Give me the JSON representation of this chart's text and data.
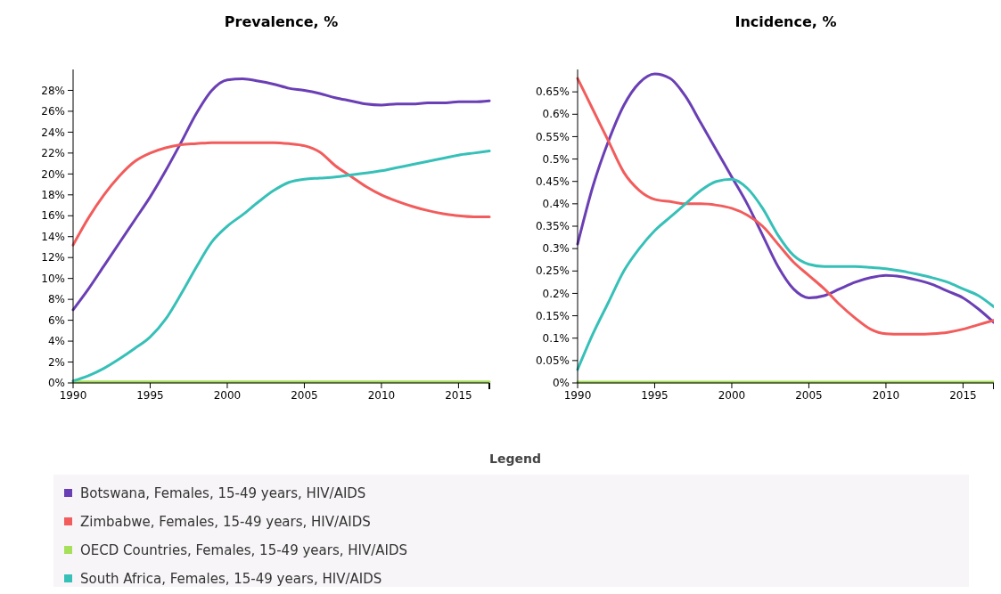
{
  "chart_data": [
    {
      "type": "line",
      "title": "Prevalence, %",
      "x": [
        1990,
        1991,
        1992,
        1993,
        1994,
        1995,
        1996,
        1997,
        1998,
        1999,
        2000,
        2001,
        2002,
        2003,
        2004,
        2005,
        2006,
        2007,
        2008,
        2009,
        2010,
        2011,
        2012,
        2013,
        2014,
        2015,
        2016,
        2017
      ],
      "xlim": [
        1990,
        2017
      ],
      "xticks": [
        1990,
        1995,
        2000,
        2005,
        2010,
        2015
      ],
      "ylim": [
        0,
        30
      ],
      "yticks": [
        {
          "value": 0,
          "label": "0%"
        },
        {
          "value": 2,
          "label": "2%"
        },
        {
          "value": 4,
          "label": "4%"
        },
        {
          "value": 6,
          "label": "6%"
        },
        {
          "value": 8,
          "label": "8%"
        },
        {
          "value": 10,
          "label": "10%"
        },
        {
          "value": 12,
          "label": "12%"
        },
        {
          "value": 14,
          "label": "14%"
        },
        {
          "value": 16,
          "label": "16%"
        },
        {
          "value": 18,
          "label": "18%"
        },
        {
          "value": 20,
          "label": "20%"
        },
        {
          "value": 22,
          "label": "22%"
        },
        {
          "value": 24,
          "label": "24%"
        },
        {
          "value": 26,
          "label": "26%"
        },
        {
          "value": 28,
          "label": "28%"
        }
      ],
      "grid": false,
      "legend": "bottom",
      "legend_title": "Legend",
      "marker": "none",
      "series": [
        {
          "name": "Botswana, Females, 15-49 years, HIV/AIDS",
          "color": "#6a3fb5",
          "values": [
            7,
            9,
            11.2,
            13.4,
            15.6,
            17.8,
            20.3,
            23,
            25.8,
            28,
            29,
            29.1,
            28.9,
            28.6,
            28.2,
            28,
            27.7,
            27.3,
            27,
            26.7,
            26.6,
            26.7,
            26.7,
            26.8,
            26.8,
            26.9,
            26.9,
            27
          ]
        },
        {
          "name": "Zimbabwe, Females, 15-49 years, HIV/AIDS",
          "color": "#f25c5c",
          "values": [
            13.2,
            15.8,
            18,
            19.8,
            21.2,
            22,
            22.5,
            22.8,
            22.9,
            23,
            23,
            23,
            23,
            23,
            22.9,
            22.7,
            22.1,
            20.8,
            19.8,
            18.8,
            18,
            17.4,
            16.9,
            16.5,
            16.2,
            16,
            15.9,
            15.9
          ]
        },
        {
          "name": "OECD Countries, Females, 15-49 years, HIV/AIDS",
          "color": "#a6e05a",
          "values": [
            0.1,
            0.1,
            0.1,
            0.1,
            0.1,
            0.1,
            0.1,
            0.1,
            0.1,
            0.1,
            0.1,
            0.1,
            0.1,
            0.1,
            0.1,
            0.1,
            0.1,
            0.1,
            0.1,
            0.1,
            0.1,
            0.1,
            0.1,
            0.1,
            0.1,
            0.1,
            0.1,
            0.1
          ]
        },
        {
          "name": "South Africa, Females, 15-49 years, HIV/AIDS",
          "color": "#36c0b8",
          "values": [
            0.2,
            0.7,
            1.4,
            2.3,
            3.3,
            4.4,
            6.1,
            8.5,
            11.1,
            13.5,
            15,
            16.1,
            17.3,
            18.4,
            19.2,
            19.5,
            19.6,
            19.7,
            19.9,
            20.1,
            20.3,
            20.6,
            20.9,
            21.2,
            21.5,
            21.8,
            22,
            22.2
          ]
        }
      ]
    },
    {
      "type": "line",
      "title": "Incidence, %",
      "x": [
        1990,
        1991,
        1992,
        1993,
        1994,
        1995,
        1996,
        1997,
        1998,
        1999,
        2000,
        2001,
        2002,
        2003,
        2004,
        2005,
        2006,
        2007,
        2008,
        2009,
        2010,
        2011,
        2012,
        2013,
        2014,
        2015,
        2016,
        2017
      ],
      "xlim": [
        1990,
        2017
      ],
      "xticks": [
        1990,
        1995,
        2000,
        2005,
        2010,
        2015
      ],
      "ylim": [
        0,
        0.7
      ],
      "yticks": [
        {
          "value": 0,
          "label": "0%"
        },
        {
          "value": 0.05,
          "label": "0.05%"
        },
        {
          "value": 0.1,
          "label": "0.1%"
        },
        {
          "value": 0.15,
          "label": "0.15%"
        },
        {
          "value": 0.2,
          "label": "0.2%"
        },
        {
          "value": 0.25,
          "label": "0.25%"
        },
        {
          "value": 0.3,
          "label": "0.3%"
        },
        {
          "value": 0.35,
          "label": "0.35%"
        },
        {
          "value": 0.4,
          "label": "0.4%"
        },
        {
          "value": 0.45,
          "label": "0.45%"
        },
        {
          "value": 0.5,
          "label": "0.5%"
        },
        {
          "value": 0.55,
          "label": "0.55%"
        },
        {
          "value": 0.6,
          "label": "0.6%"
        },
        {
          "value": 0.65,
          "label": "0.65%"
        }
      ],
      "grid": false,
      "marker": "none",
      "series": [
        {
          "color": "#6a3fb5",
          "values": [
            0.31,
            0.44,
            0.54,
            0.62,
            0.67,
            0.69,
            0.68,
            0.64,
            0.58,
            0.52,
            0.46,
            0.4,
            0.33,
            0.26,
            0.21,
            0.19,
            0.195,
            0.21,
            0.225,
            0.235,
            0.24,
            0.237,
            0.23,
            0.22,
            0.205,
            0.19,
            0.165,
            0.135
          ]
        },
        {
          "color": "#f25c5c",
          "values": [
            0.68,
            0.61,
            0.54,
            0.47,
            0.43,
            0.41,
            0.405,
            0.4,
            0.4,
            0.397,
            0.39,
            0.375,
            0.35,
            0.31,
            0.27,
            0.24,
            0.21,
            0.175,
            0.145,
            0.12,
            0.11,
            0.109,
            0.109,
            0.11,
            0.113,
            0.12,
            0.13,
            0.14
          ]
        },
        {
          "color": "#a6e05a",
          "values": [
            0.002,
            0.002,
            0.002,
            0.002,
            0.002,
            0.002,
            0.002,
            0.002,
            0.002,
            0.002,
            0.002,
            0.002,
            0.002,
            0.002,
            0.002,
            0.002,
            0.002,
            0.002,
            0.002,
            0.002,
            0.002,
            0.002,
            0.002,
            0.002,
            0.002,
            0.002,
            0.002,
            0.002
          ]
        },
        {
          "color": "#36c0b8",
          "values": [
            0.03,
            0.11,
            0.18,
            0.25,
            0.3,
            0.34,
            0.37,
            0.4,
            0.43,
            0.45,
            0.455,
            0.435,
            0.39,
            0.33,
            0.285,
            0.265,
            0.26,
            0.26,
            0.26,
            0.258,
            0.255,
            0.25,
            0.243,
            0.235,
            0.225,
            0.21,
            0.195,
            0.17
          ]
        }
      ]
    }
  ]
}
